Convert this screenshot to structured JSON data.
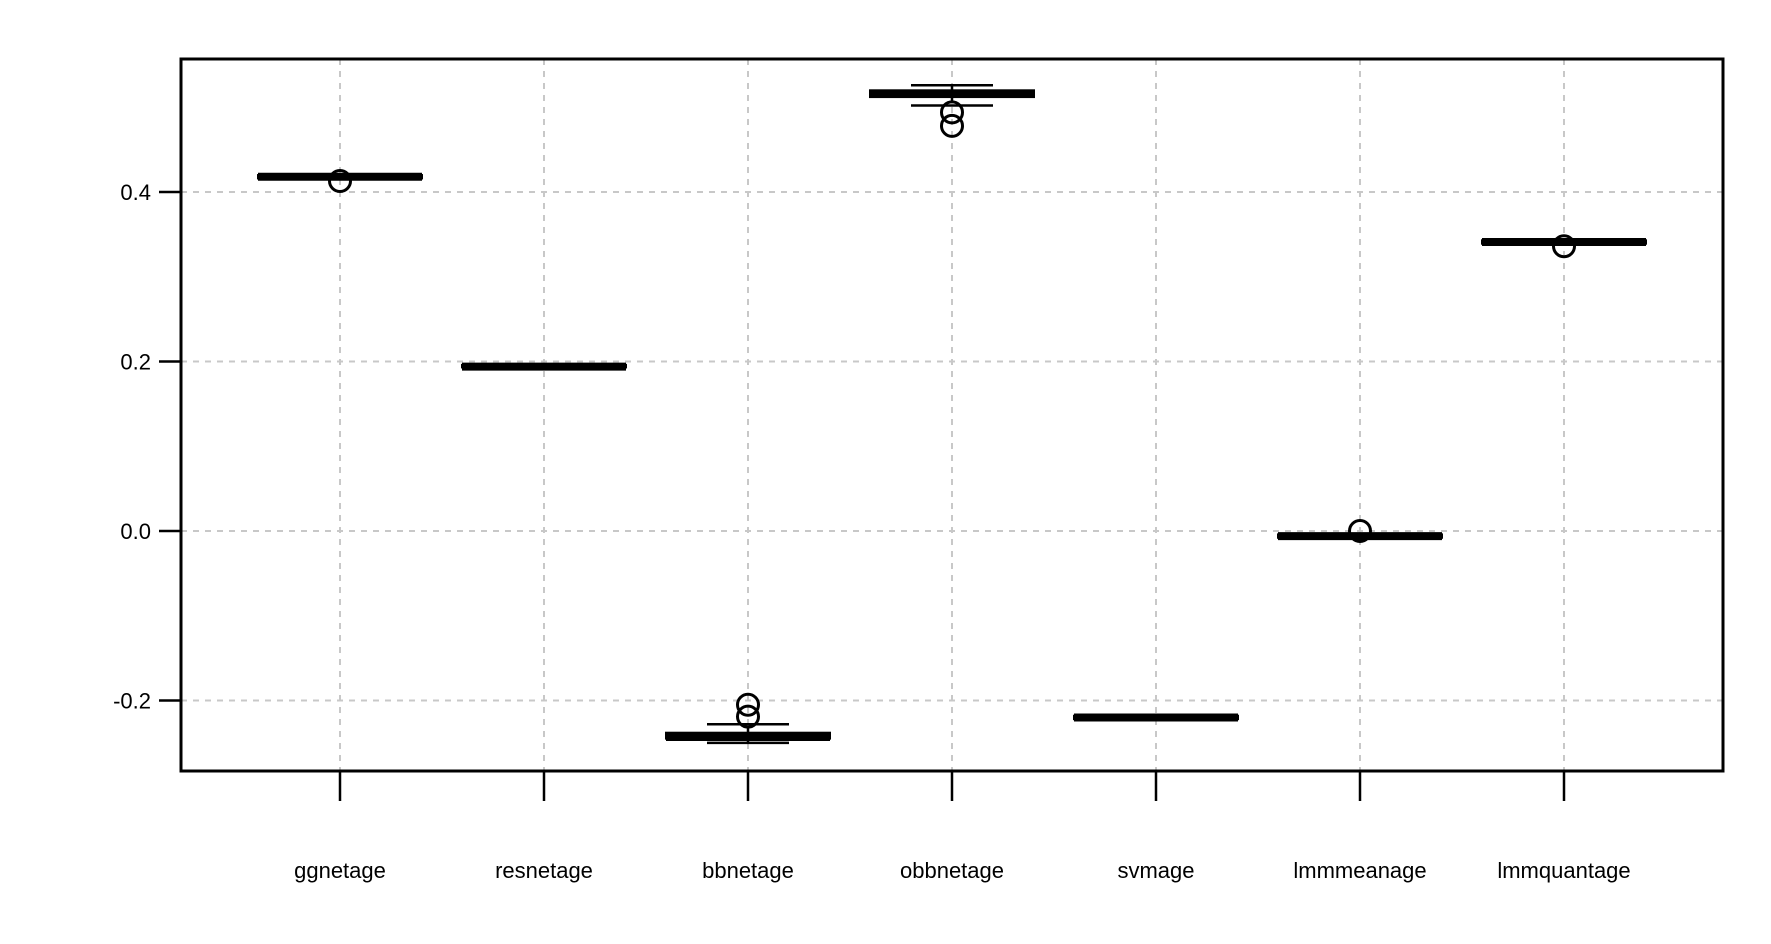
{
  "chart_data": {
    "type": "boxplot",
    "title": "",
    "xlabel": "",
    "ylabel": "",
    "ylim": [
      -0.28,
      0.56
    ],
    "yticks": [
      -0.2,
      0.0,
      0.2,
      0.4
    ],
    "ytick_labels": [
      "-0.2",
      "0.0",
      "0.2",
      "0.4"
    ],
    "grid": true,
    "categories": [
      "ggnetage",
      "resnetage",
      "bbnetage",
      "obbnetage",
      "svmage",
      "lmmmeanage",
      "lmmquantage"
    ],
    "boxes": [
      {
        "q1": 0.416,
        "median": 0.418,
        "q3": 0.42,
        "whisker_low": 0.416,
        "whisker_high": 0.42,
        "outliers": [
          0.413
        ]
      },
      {
        "q1": 0.193,
        "median": 0.194,
        "q3": 0.196,
        "whisker_low": 0.193,
        "whisker_high": 0.196,
        "outliers": []
      },
      {
        "q1": -0.245,
        "median": -0.243,
        "q3": -0.238,
        "whisker_low": -0.25,
        "whisker_high": -0.228,
        "outliers": [
          -0.205,
          -0.219
        ]
      },
      {
        "q1": 0.512,
        "median": 0.516,
        "q3": 0.52,
        "whisker_low": 0.502,
        "whisker_high": 0.526,
        "outliers": [
          0.494,
          0.478
        ]
      },
      {
        "q1": -0.222,
        "median": -0.22,
        "q3": -0.218,
        "whisker_low": -0.222,
        "whisker_high": -0.218,
        "outliers": []
      },
      {
        "q1": -0.008,
        "median": -0.006,
        "q3": -0.004,
        "whisker_low": -0.008,
        "whisker_high": -0.004,
        "outliers": [
          0.0
        ]
      },
      {
        "q1": 0.339,
        "median": 0.341,
        "q3": 0.343,
        "whisker_low": 0.339,
        "whisker_high": 0.343,
        "outliers": [
          0.336
        ]
      }
    ]
  }
}
